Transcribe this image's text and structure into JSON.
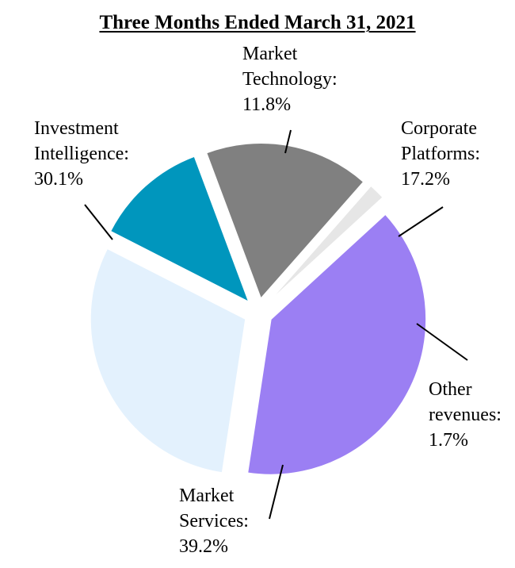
{
  "chart_data": {
    "type": "pie",
    "title": "Three Months Ended March 31, 2021",
    "slices": [
      {
        "label_lines": [
          "Market",
          "Technology:"
        ],
        "pct_text": "11.8%",
        "value": 11.8,
        "color": "#0096BD"
      },
      {
        "label_lines": [
          "Corporate",
          "Platforms:"
        ],
        "pct_text": "17.2%",
        "value": 17.2,
        "color": "#808080"
      },
      {
        "label_lines": [
          "Other",
          "revenues:"
        ],
        "pct_text": "1.7%",
        "value": 1.7,
        "color": "#E6E6E6"
      },
      {
        "label_lines": [
          "Market",
          "Services:"
        ],
        "pct_text": "39.2%",
        "value": 39.2,
        "color": "#9B7FF3"
      },
      {
        "label_lines": [
          "Investment",
          "Intelligence:"
        ],
        "pct_text": "30.1%",
        "value": 30.1,
        "color": "#E3F1FD"
      }
    ]
  }
}
